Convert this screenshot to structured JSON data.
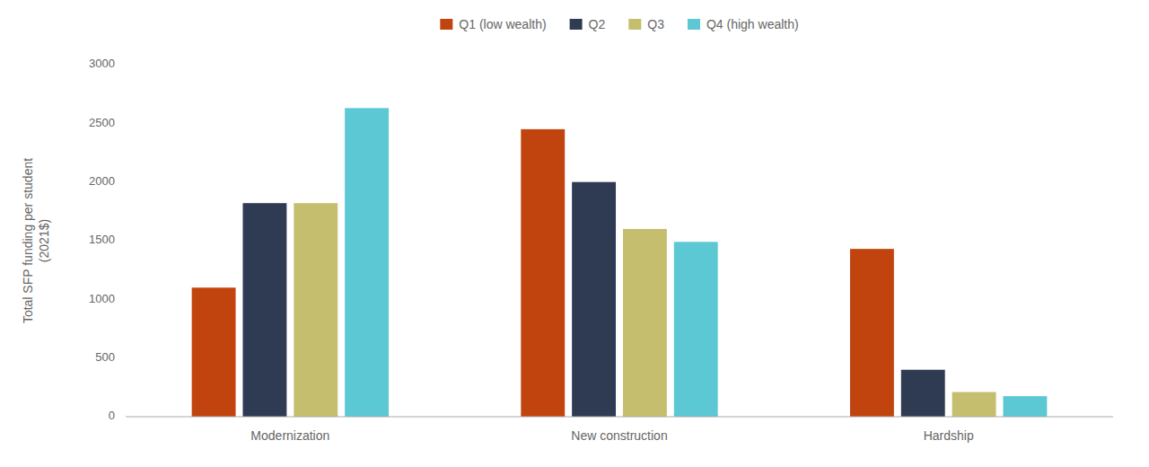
{
  "chart_data": {
    "type": "bar",
    "ylabel": "Total SFP funding per student\n(2021$)",
    "categories": [
      "Modernization",
      "New construction",
      "Hardship"
    ],
    "series": [
      {
        "name": "Q1 (low wealth)",
        "color": "#C1440E",
        "values": [
          1100,
          2450,
          1430
        ]
      },
      {
        "name": "Q2",
        "color": "#2E3B52",
        "values": [
          1820,
          2000,
          400
        ]
      },
      {
        "name": "Q3",
        "color": "#C5BE6E",
        "values": [
          1820,
          1600,
          210
        ]
      },
      {
        "name": "Q4 (high wealth)",
        "color": "#5BC8D4",
        "values": [
          2630,
          1490,
          175
        ]
      }
    ],
    "ylim": [
      0,
      3000
    ],
    "yticks": [
      0,
      500,
      1000,
      1500,
      2000,
      2500,
      3000
    ],
    "grid": false,
    "legend": "top"
  }
}
